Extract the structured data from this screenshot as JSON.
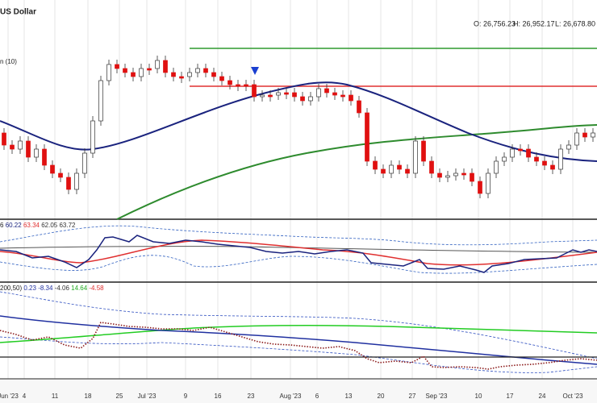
{
  "header": {
    "title": "US Dollar",
    "open": "O: 26,756.23",
    "high": "H: 26,952.17",
    "low": "L: 26,678.80"
  },
  "main_panel": {
    "indicator_label": "n (10)"
  },
  "panel2": {
    "label_prefix": "6",
    "readings": [
      "60.22",
      "63.34",
      "62.05",
      "63.72"
    ]
  },
  "panel3": {
    "label_prefix": "200,50)",
    "readings": [
      "0.23",
      "-8.34",
      "-4.06",
      "14.64",
      "-4.58"
    ]
  },
  "x_axis": {
    "labels": [
      "Jun '23",
      "4",
      "11",
      "18",
      "25",
      "Jul '23",
      "9",
      "16",
      "23",
      "Aug '23",
      "6",
      "13",
      "20",
      "27",
      "Sep '23",
      "10",
      "17",
      "24",
      "Oct '23"
    ]
  }
}
